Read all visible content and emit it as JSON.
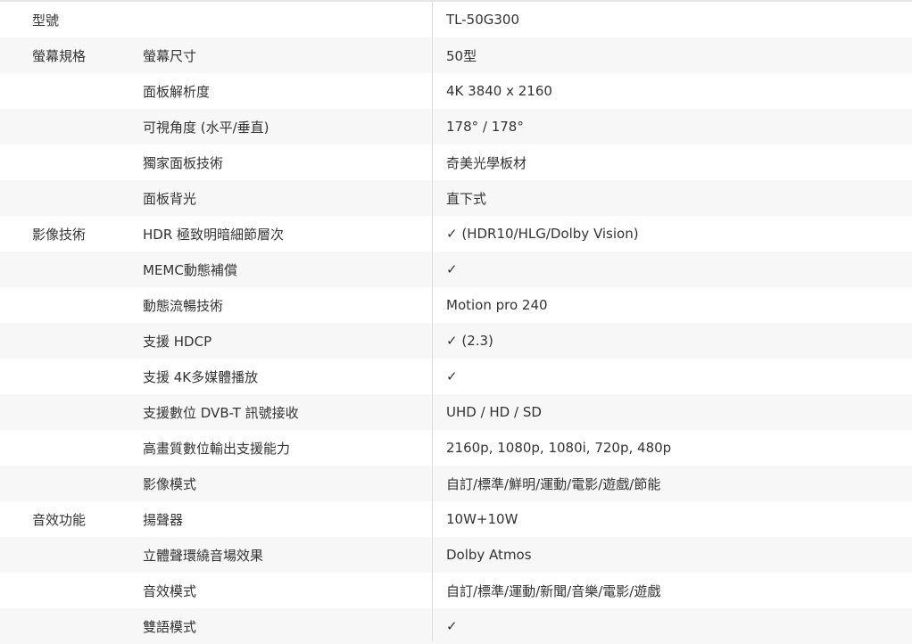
{
  "rows": [
    {
      "category": "型號",
      "item": "",
      "value": "TL-50G300"
    },
    {
      "category": "螢幕規格",
      "item": "螢幕尺寸",
      "value": "50型"
    },
    {
      "category": "",
      "item": "面板解析度",
      "value": "4K 3840 x 2160"
    },
    {
      "category": "",
      "item": "可視角度 (水平/垂直)",
      "value": "178° / 178°"
    },
    {
      "category": "",
      "item": "獨家面板技術",
      "value": "奇美光學板材"
    },
    {
      "category": "",
      "item": "面板背光",
      "value": "直下式"
    },
    {
      "category": "影像技術",
      "item": "HDR 極致明暗細節層次",
      "value": "✓ (HDR10/HLG/Dolby Vision)"
    },
    {
      "category": "",
      "item": "MEMC動態補償",
      "value": "✓"
    },
    {
      "category": "",
      "item": "動態流暢技術",
      "value": "Motion pro 240"
    },
    {
      "category": "",
      "item": "支援 HDCP",
      "value": "✓ (2.3)"
    },
    {
      "category": "",
      "item": "支援 4K多媒體播放",
      "value": "✓"
    },
    {
      "category": "",
      "item": "支援數位 DVB-T 訊號接收",
      "value": "UHD / HD / SD"
    },
    {
      "category": "",
      "item": "高畫質數位輸出支援能力",
      "value": "2160p, 1080p, 1080i, 720p, 480p"
    },
    {
      "category": "",
      "item": "影像模式",
      "value": "自訂/標準/鮮明/運動/電影/遊戲/節能"
    },
    {
      "category": "音效功能",
      "item": "揚聲器",
      "value": "10W+10W"
    },
    {
      "category": "",
      "item": "立體聲環繞音場效果",
      "value": "Dolby Atmos"
    },
    {
      "category": "",
      "item": "音效模式",
      "value": "自訂/標準/運動/新聞/音樂/電影/遊戲"
    },
    {
      "category": "",
      "item": "雙語模式",
      "value": "✓"
    }
  ]
}
